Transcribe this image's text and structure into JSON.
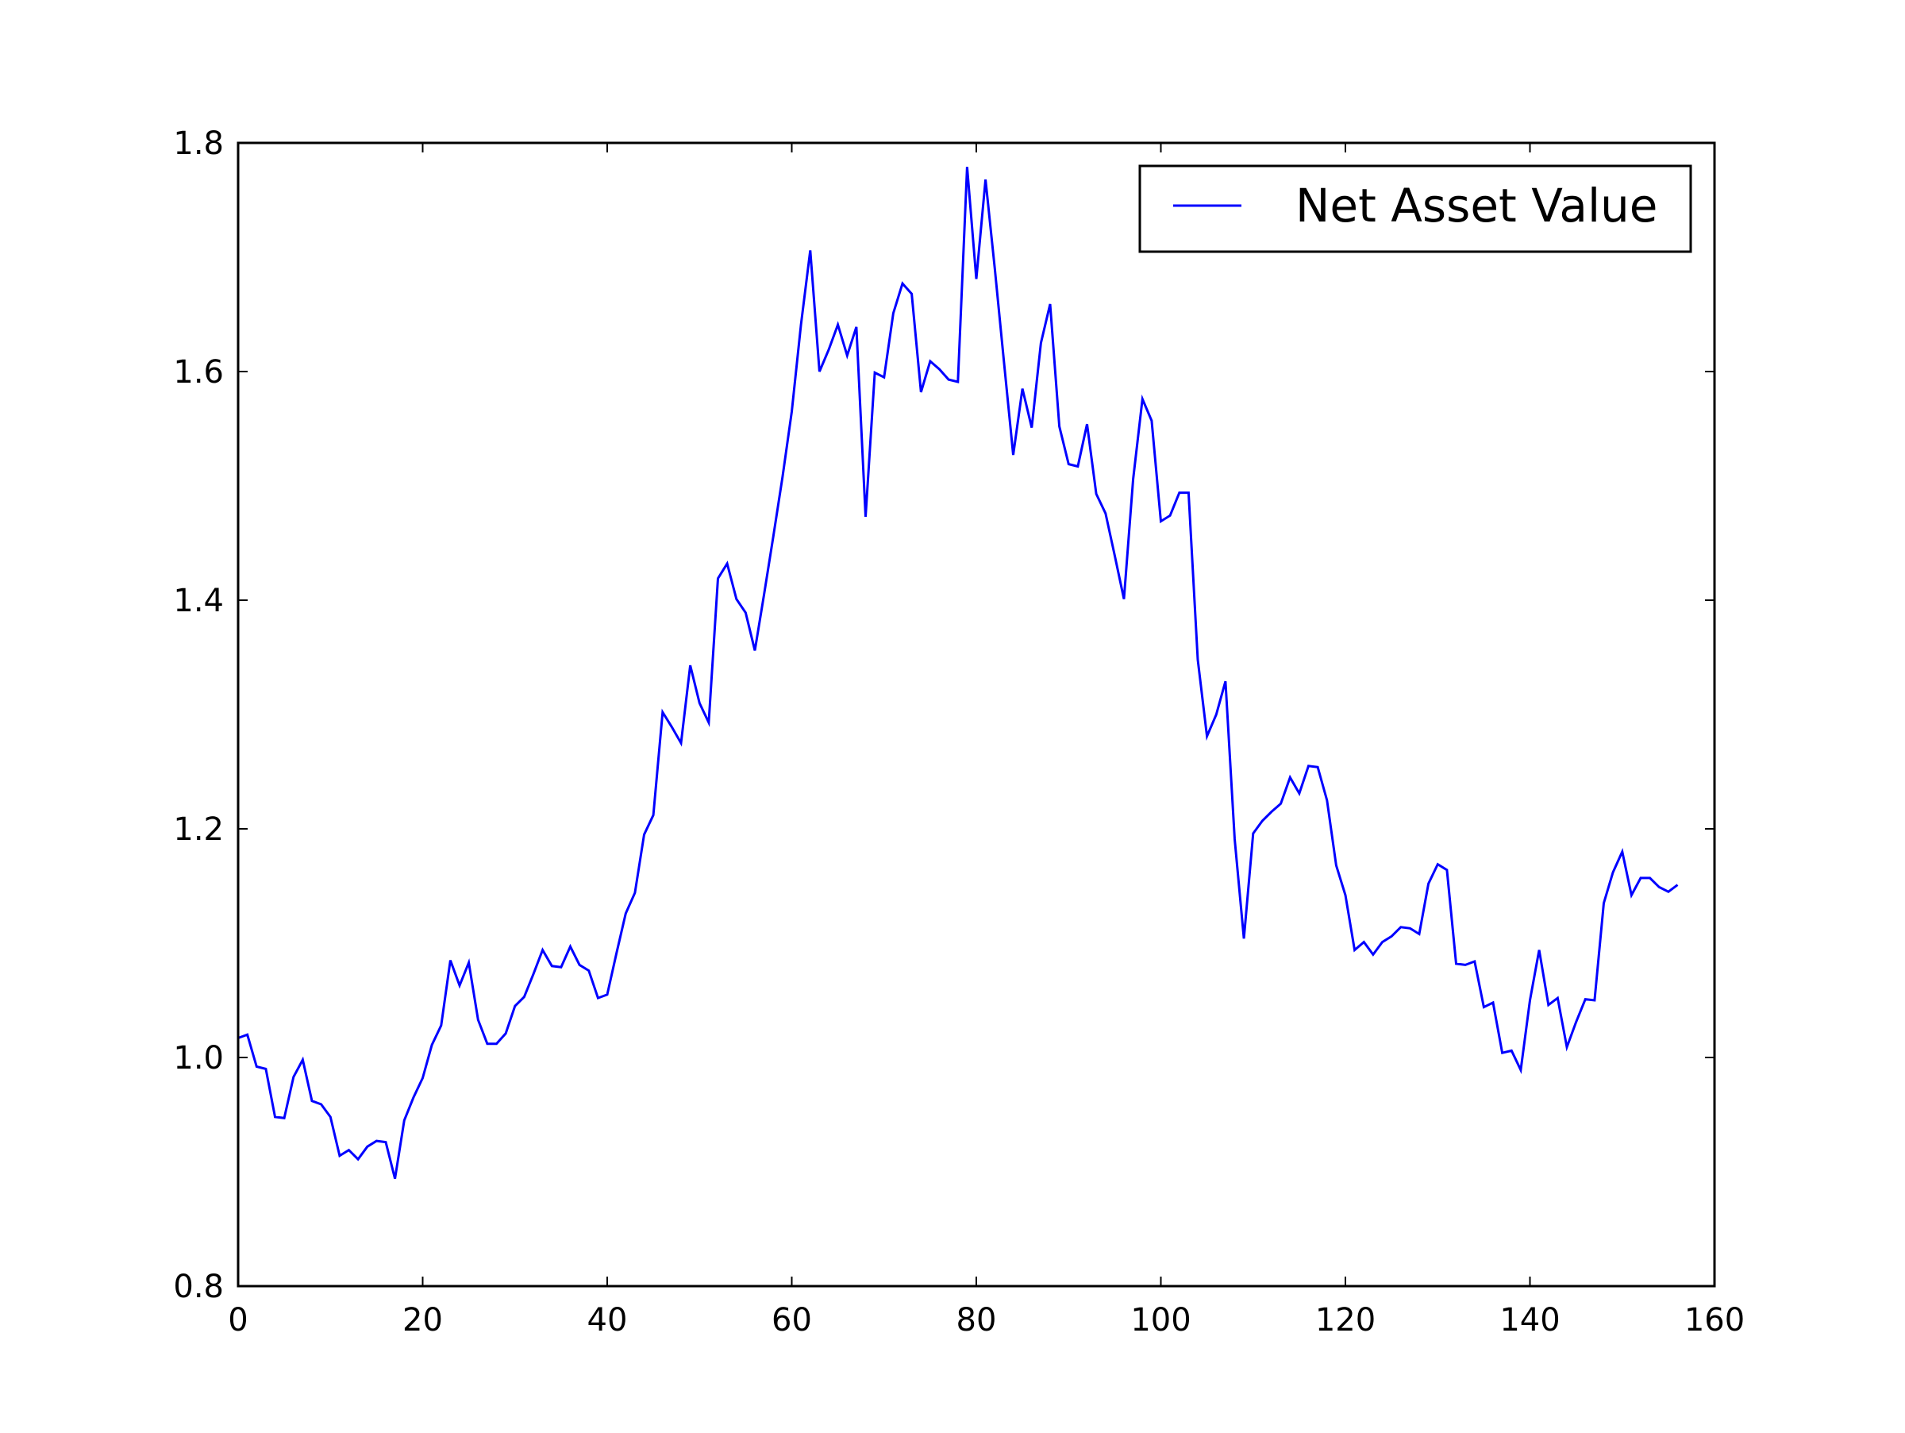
{
  "chart_data": {
    "type": "line",
    "title": "",
    "xlabel": "",
    "ylabel": "",
    "xlim": [
      0,
      160
    ],
    "ylim": [
      0.8,
      1.8
    ],
    "xticks": [
      0,
      20,
      40,
      60,
      80,
      100,
      120,
      140,
      160
    ],
    "xtick_labels": [
      "0",
      "20",
      "40",
      "60",
      "80",
      "100",
      "120",
      "140",
      "160"
    ],
    "yticks": [
      0.8,
      1.0,
      1.2,
      1.4,
      1.6,
      1.8
    ],
    "ytick_labels": [
      "0.8",
      "1.0",
      "1.2",
      "1.4",
      "1.6",
      "1.8"
    ],
    "grid": false,
    "legend_position": "top-right",
    "series": [
      {
        "name": "Net Asset Value",
        "color": "#0000ff",
        "x": [
          0,
          1,
          2,
          3,
          4,
          5,
          6,
          7,
          8,
          9,
          10,
          11,
          12,
          13,
          14,
          15,
          16,
          17,
          18,
          19,
          20,
          21,
          22,
          23,
          24,
          25,
          26,
          27,
          28,
          29,
          30,
          31,
          32,
          33,
          34,
          35,
          36,
          37,
          38,
          39,
          40,
          41,
          42,
          43,
          44,
          45,
          46,
          47,
          48,
          49,
          50,
          51,
          52,
          53,
          54,
          55,
          56,
          57,
          58,
          59,
          60,
          61,
          62,
          63,
          64,
          65,
          66,
          67,
          68,
          69,
          70,
          71,
          72,
          73,
          74,
          75,
          76,
          77,
          78,
          79,
          80,
          81,
          82,
          83,
          84,
          85,
          86,
          87,
          88,
          89,
          90,
          91,
          92,
          93,
          94,
          95,
          96,
          97,
          98,
          99,
          100,
          101,
          102,
          103,
          104,
          105,
          106,
          107,
          108,
          109,
          110,
          111,
          112,
          113,
          114,
          115,
          116,
          117,
          118,
          119,
          120,
          121,
          122,
          123,
          124,
          125,
          126,
          127,
          128,
          129,
          130,
          131,
          132,
          133,
          134,
          135,
          136,
          137,
          138,
          139,
          140,
          141,
          142,
          143,
          144,
          145,
          146,
          147,
          148,
          149,
          150,
          151,
          152,
          153,
          154,
          155,
          156
        ],
        "values": [
          1.017,
          1.02,
          0.992,
          0.99,
          0.948,
          0.947,
          0.983,
          0.998,
          0.962,
          0.959,
          0.948,
          0.914,
          0.919,
          0.911,
          0.922,
          0.927,
          0.926,
          0.894,
          0.945,
          0.965,
          0.982,
          1.011,
          1.028,
          1.085,
          1.063,
          1.083,
          1.033,
          1.012,
          1.012,
          1.021,
          1.045,
          1.053,
          1.073,
          1.094,
          1.08,
          1.079,
          1.097,
          1.081,
          1.076,
          1.052,
          1.055,
          1.091,
          1.126,
          1.144,
          1.195,
          1.212,
          1.302,
          1.289,
          1.275,
          1.343,
          1.31,
          1.293,
          1.419,
          1.432,
          1.401,
          1.389,
          1.356,
          1.405,
          1.456,
          1.508,
          1.565,
          1.641,
          1.706,
          1.6,
          1.619,
          1.641,
          1.614,
          1.639,
          1.473,
          1.599,
          1.595,
          1.651,
          1.677,
          1.668,
          1.582,
          1.609,
          1.602,
          1.593,
          1.591,
          1.779,
          1.681,
          1.768,
          1.69,
          1.608,
          1.527,
          1.585,
          1.551,
          1.625,
          1.659,
          1.552,
          1.519,
          1.517,
          1.554,
          1.493,
          1.476,
          1.439,
          1.401,
          1.506,
          1.576,
          1.557,
          1.469,
          1.474,
          1.494,
          1.494,
          1.348,
          1.281,
          1.3,
          1.329,
          1.191,
          1.104,
          1.196,
          1.207,
          1.215,
          1.222,
          1.245,
          1.231,
          1.255,
          1.254,
          1.225,
          1.168,
          1.142,
          1.094,
          1.101,
          1.09,
          1.101,
          1.106,
          1.114,
          1.113,
          1.108,
          1.152,
          1.169,
          1.164,
          1.082,
          1.081,
          1.084,
          1.044,
          1.048,
          1.004,
          1.006,
          0.989,
          1.05,
          1.094,
          1.046,
          1.052,
          1.009,
          1.031,
          1.051,
          1.05,
          1.135,
          1.162,
          1.18,
          1.142,
          1.157,
          1.157,
          1.149,
          1.145,
          1.151
        ]
      }
    ]
  }
}
